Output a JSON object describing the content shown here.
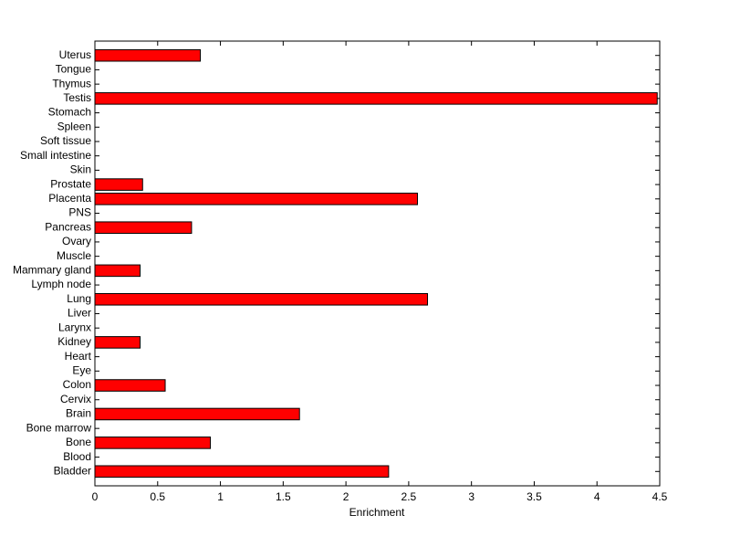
{
  "chart_data": {
    "type": "barh",
    "xlabel": "Enrichment",
    "categories": [
      "Bladder",
      "Blood",
      "Bone",
      "Bone marrow",
      "Brain",
      "Cervix",
      "Colon",
      "Eye",
      "Heart",
      "Kidney",
      "Larynx",
      "Liver",
      "Lung",
      "Lymph node",
      "Mammary gland",
      "Muscle",
      "Ovary",
      "Pancreas",
      "PNS",
      "Placenta",
      "Prostate",
      "Skin",
      "Small intestine",
      "Soft tissue",
      "Spleen",
      "Stomach",
      "Testis",
      "Thymus",
      "Tongue",
      "Uterus"
    ],
    "values": [
      2.34,
      0,
      0.92,
      0,
      1.63,
      0,
      0.56,
      0,
      0,
      0.36,
      0,
      0,
      2.65,
      0,
      0.36,
      0,
      0,
      0.77,
      0,
      2.57,
      0.38,
      0,
      0,
      0,
      0,
      0,
      4.48,
      0,
      0,
      0.84
    ],
    "color": "#ff0000",
    "xlim": [
      0,
      4.5
    ],
    "xticks": [
      0,
      0.5,
      1,
      1.5,
      2,
      2.5,
      3,
      3.5,
      4,
      4.5
    ]
  }
}
